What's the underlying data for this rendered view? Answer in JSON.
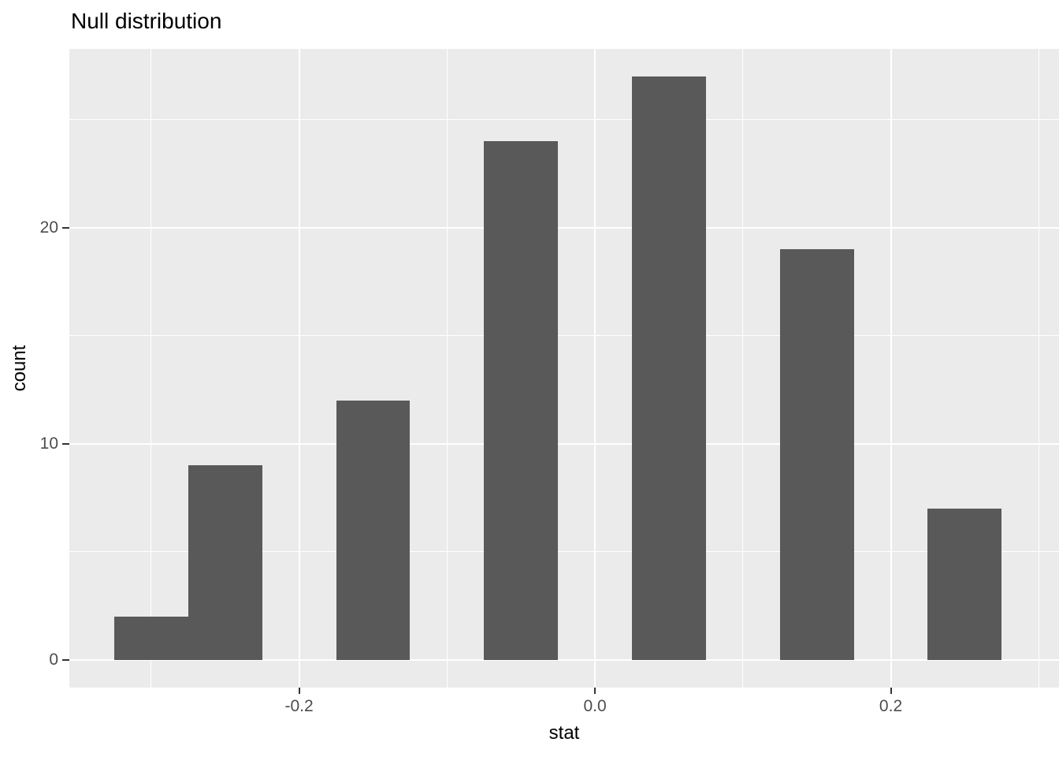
{
  "title": "Null distribution",
  "colors": {
    "panel_background": "#EBEBEB",
    "gridline": "#FFFFFF",
    "bar_fill": "#595959",
    "tick_label_text": "#4D4D4D",
    "tick_mark": "#333333",
    "title_text": "#000000",
    "page_background": "#FFFFFF"
  },
  "chart_data": {
    "type": "bar",
    "subtype": "histogram",
    "title": "Null distribution",
    "xlabel": "stat",
    "ylabel": "count",
    "bin_width": 0.05,
    "total_count": 100,
    "bins": [
      {
        "x0": -0.325,
        "x1": -0.275,
        "count": 2
      },
      {
        "x0": -0.275,
        "x1": -0.225,
        "count": 9
      },
      {
        "x0": -0.225,
        "x1": -0.175,
        "count": 0
      },
      {
        "x0": -0.175,
        "x1": -0.125,
        "count": 12
      },
      {
        "x0": -0.125,
        "x1": -0.075,
        "count": 0
      },
      {
        "x0": -0.075,
        "x1": -0.025,
        "count": 24
      },
      {
        "x0": -0.025,
        "x1": 0.025,
        "count": 0
      },
      {
        "x0": 0.025,
        "x1": 0.075,
        "count": 27
      },
      {
        "x0": 0.075,
        "x1": 0.125,
        "count": 0
      },
      {
        "x0": 0.125,
        "x1": 0.175,
        "count": 19
      },
      {
        "x0": 0.175,
        "x1": 0.225,
        "count": 0
      },
      {
        "x0": 0.225,
        "x1": 0.275,
        "count": 7
      }
    ],
    "x_ticks": [
      {
        "value": -0.2,
        "label": "-0.2"
      },
      {
        "value": 0.0,
        "label": "0.0"
      },
      {
        "value": 0.2,
        "label": "0.2"
      }
    ],
    "x_minor_gridlines": [
      -0.3,
      -0.1,
      0.1,
      0.3
    ],
    "y_ticks": [
      {
        "value": 0,
        "label": "0"
      },
      {
        "value": 10,
        "label": "10"
      },
      {
        "value": 20,
        "label": "20"
      }
    ],
    "y_minor_gridlines": [
      5,
      15,
      25
    ],
    "x_range": [
      -0.3553,
      0.3137
    ],
    "y_range": [
      -1.28,
      28.28
    ],
    "grid": true,
    "legend": false
  }
}
